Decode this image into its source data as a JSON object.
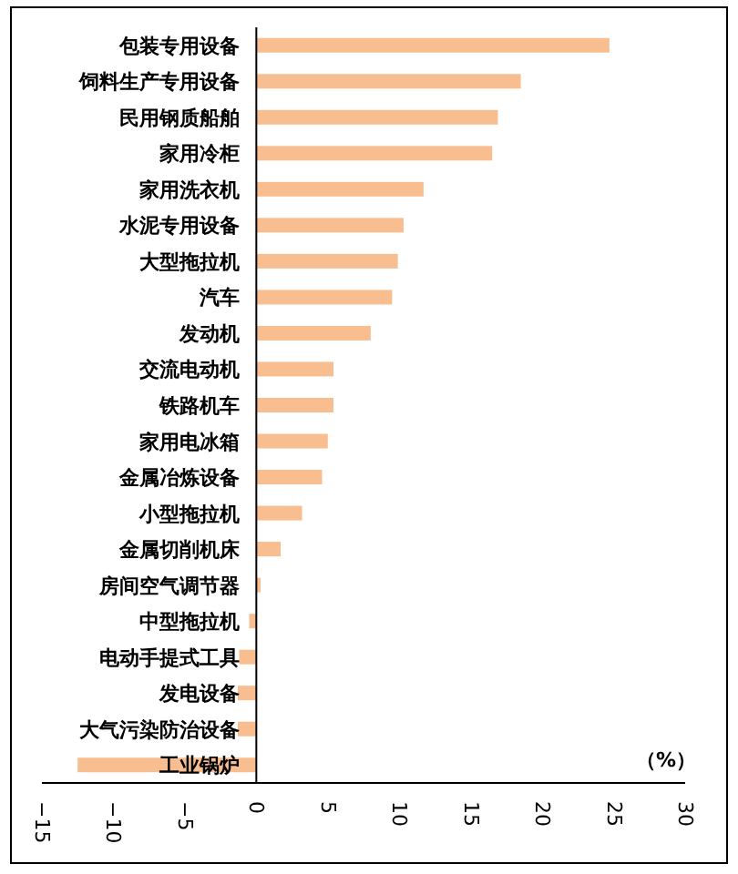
{
  "chart_data": {
    "type": "bar",
    "orientation": "horizontal",
    "categories": [
      "包装专用设备",
      "饲料生产专用设备",
      "民用钢质船舶",
      "家用冷柜",
      "家用洗衣机",
      "水泥专用设备",
      "大型拖拉机",
      "汽车",
      "发动机",
      "交流电动机",
      "铁路机车",
      "家用电冰箱",
      "金属冶炼设备",
      "小型拖拉机",
      "金属切削机床",
      "房间空气调节器",
      "中型拖拉机",
      "电动手提式工具",
      "发电设备",
      "大气污染防治设备",
      "工业锅炉"
    ],
    "values": [
      24.7,
      18.5,
      16.9,
      16.5,
      11.7,
      10.3,
      9.9,
      9.5,
      8.0,
      5.4,
      5.4,
      5.0,
      4.6,
      3.2,
      1.7,
      0.3,
      -0.5,
      -1.2,
      -1.3,
      -1.3,
      -12.5
    ],
    "color": "#f9be8f",
    "xlim": [
      -15,
      30
    ],
    "xticks": [
      -15,
      -10,
      -5,
      0,
      5,
      10,
      15,
      20,
      25,
      30
    ],
    "annotations": [
      "（%）"
    ],
    "grid": false
  }
}
